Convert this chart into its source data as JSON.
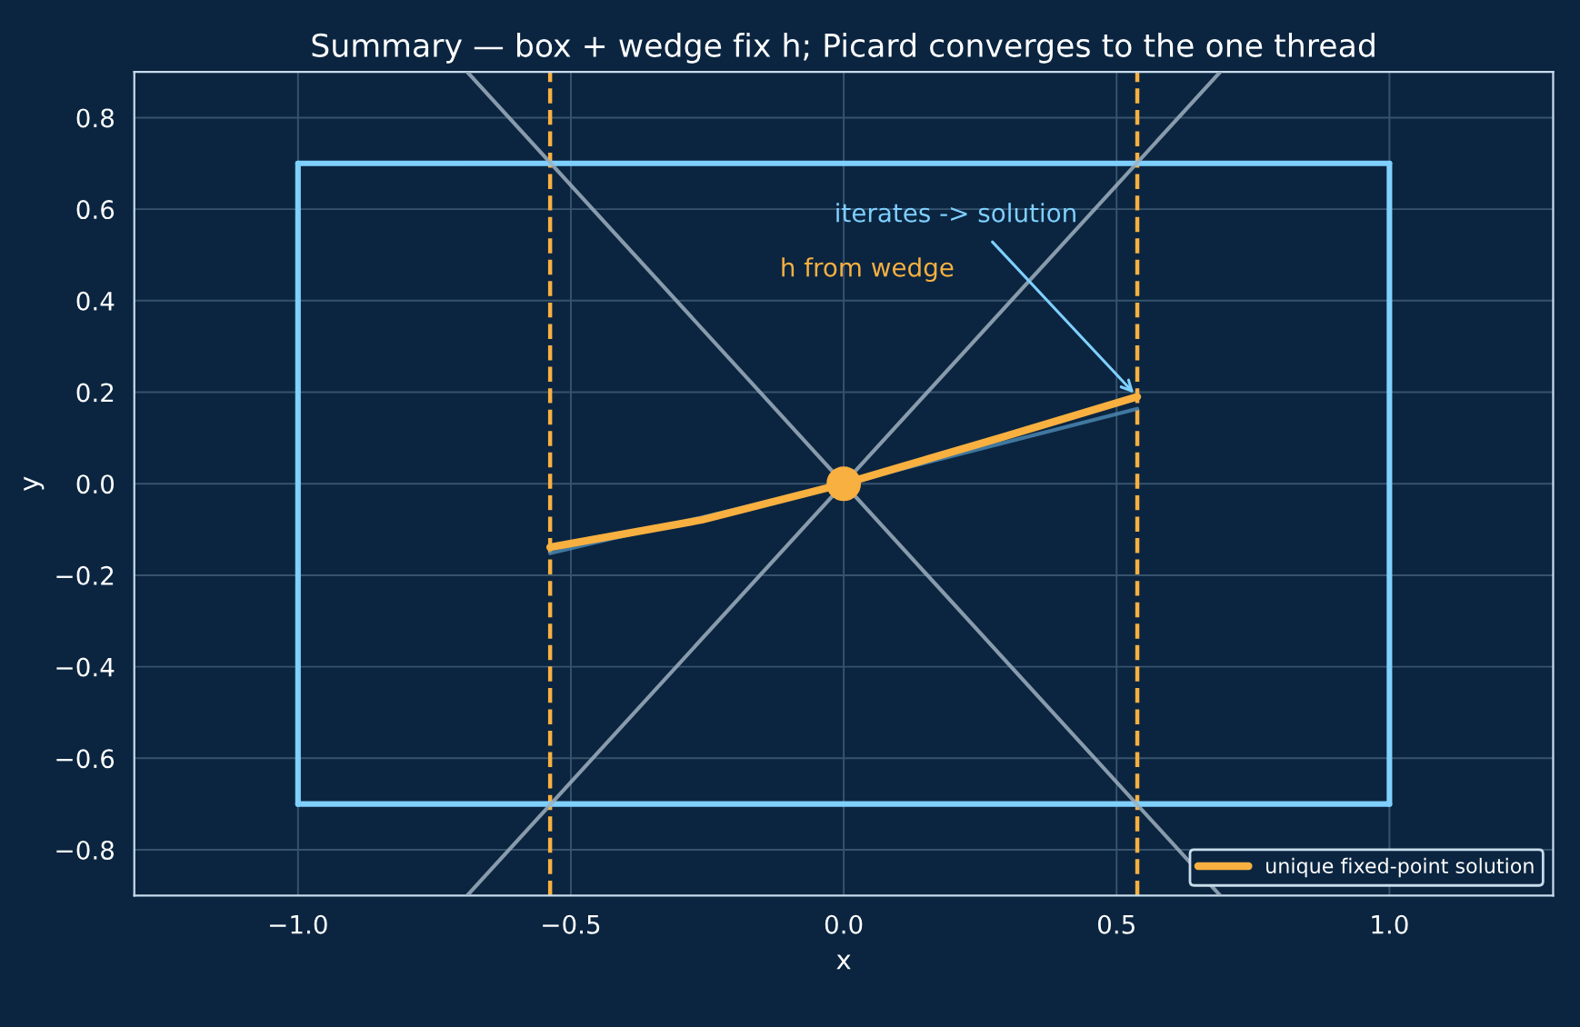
{
  "chart_data": {
    "type": "line",
    "title": "Summary — box + wedge fix h; Picard converges to the one thread",
    "xlabel": "x",
    "ylabel": "y",
    "xlim": [
      -1.3,
      1.3
    ],
    "ylim": [
      -0.9,
      0.9
    ],
    "xticks": [
      {
        "value": -1.0,
        "label": "−1.0"
      },
      {
        "value": -0.5,
        "label": "−0.5"
      },
      {
        "value": 0.0,
        "label": "0.0"
      },
      {
        "value": 0.5,
        "label": "0.5"
      },
      {
        "value": 1.0,
        "label": "1.0"
      }
    ],
    "yticks": [
      {
        "value": -0.8,
        "label": "−0.8"
      },
      {
        "value": -0.6,
        "label": "−0.6"
      },
      {
        "value": -0.4,
        "label": "−0.4"
      },
      {
        "value": -0.2,
        "label": "−0.2"
      },
      {
        "value": 0.0,
        "label": "0.0"
      },
      {
        "value": 0.2,
        "label": "0.2"
      },
      {
        "value": 0.4,
        "label": "0.4"
      },
      {
        "value": 0.6,
        "label": "0.6"
      },
      {
        "value": 0.8,
        "label": "0.8"
      }
    ],
    "grid": true,
    "legend": "bottom right",
    "series": [
      {
        "color": "#7fd0ff",
        "x": [
          -1,
          1
        ],
        "values": [
          -0.7,
          -0.7
        ]
      },
      {
        "color": "#7fd0ff",
        "x": [
          -1,
          1
        ],
        "values": [
          0.7,
          0.7
        ]
      },
      {
        "color": "#7fd0ff",
        "x": [
          -1,
          -1
        ],
        "values": [
          -0.7,
          0.7
        ]
      },
      {
        "color": "#7fd0ff",
        "x": [
          1,
          1
        ],
        "values": [
          -0.7,
          0.7
        ]
      },
      {
        "color": "#9fb0c0",
        "x": [
          -0.69,
          0.69
        ],
        "values": [
          -0.9,
          0.9
        ]
      },
      {
        "color": "#9fb0c0",
        "x": [
          -0.69,
          0.69
        ],
        "values": [
          0.9,
          -0.9
        ]
      },
      {
        "color": "#4a86b0",
        "x": [
          -0.538,
          0,
          0.538
        ],
        "values": [
          -0.152,
          0,
          0.164
        ]
      },
      {
        "name": "unique fixed-point solution",
        "color": "#f8b040",
        "x": [
          -0.538,
          -0.26,
          0,
          0.288,
          0.538
        ],
        "values": [
          -0.139,
          -0.079,
          0,
          0.101,
          0.19
        ]
      },
      {
        "type": "scatter",
        "color": "#f8b040",
        "x": [
          0
        ],
        "values": [
          0
        ]
      }
    ],
    "ref_lines": [
      {
        "axis": "x",
        "value": -0.538,
        "color": "#f8b040",
        "line_style": "dashed"
      },
      {
        "axis": "x",
        "value": 0.538,
        "color": "#f8b040",
        "line_style": "dashed"
      }
    ],
    "annotations": [
      {
        "text": "iterates -> solution",
        "x": 0.538,
        "y": 0.19
      },
      "h from wedge"
    ]
  }
}
